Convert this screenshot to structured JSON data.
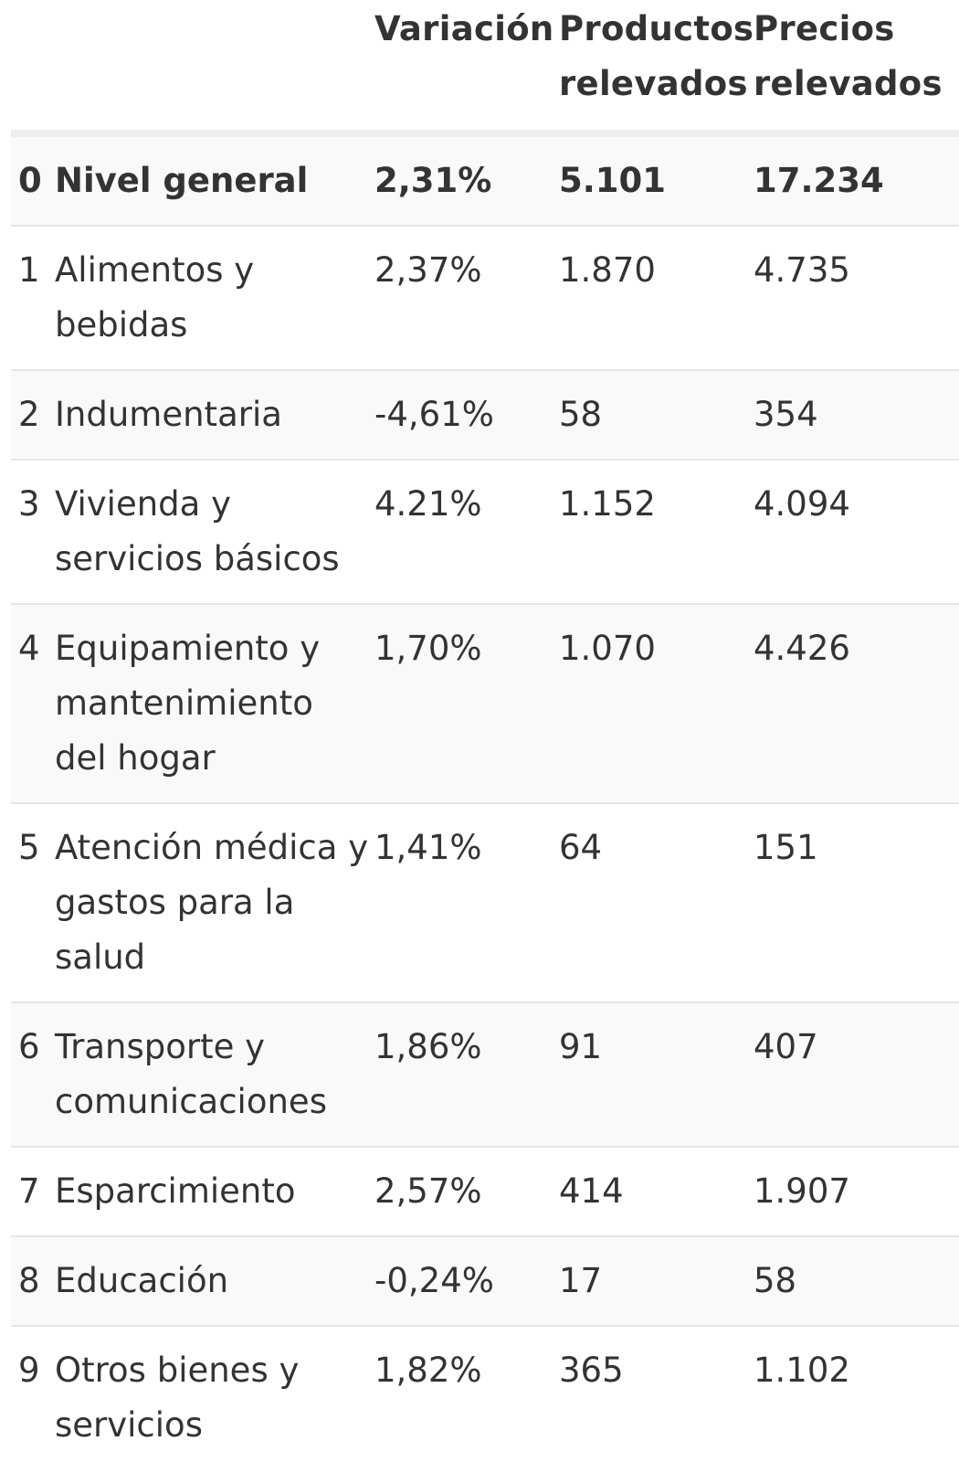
{
  "table": {
    "headers": {
      "number": "",
      "category": "",
      "variation": "Variación",
      "products": "Productos relevados",
      "prices": "Precios relevados"
    },
    "rows": [
      {
        "num": "0",
        "category": "Nivel general",
        "variation": "2,31%",
        "products": "5.101",
        "prices": "17.234"
      },
      {
        "num": "1",
        "category": "Alimentos y bebidas",
        "variation": "2,37%",
        "products": "1.870",
        "prices": "4.735"
      },
      {
        "num": "2",
        "category": "Indumentaria",
        "variation": "-4,61%",
        "products": "58",
        "prices": "354"
      },
      {
        "num": "3",
        "category": "Vivienda y servicios básicos",
        "variation": "4.21%",
        "products": "1.152",
        "prices": "4.094"
      },
      {
        "num": "4",
        "category": "Equipamiento y mantenimiento del hogar",
        "variation": "1,70%",
        "products": "1.070",
        "prices": "4.426"
      },
      {
        "num": "5",
        "category": "Atención médica y gastos para la salud",
        "variation": "1,41%",
        "products": "64",
        "prices": "151"
      },
      {
        "num": "6",
        "category": "Transporte y comunicaciones",
        "variation": "1,86%",
        "products": "91",
        "prices": "407"
      },
      {
        "num": "7",
        "category": "Esparcimiento",
        "variation": "2,57%",
        "products": "414",
        "prices": "1.907"
      },
      {
        "num": "8",
        "category": "Educación",
        "variation": "-0,24%",
        "products": "17",
        "prices": "58"
      },
      {
        "num": "9",
        "category": "Otros bienes y servicios",
        "variation": "1,82%",
        "products": "365",
        "prices": "1.102"
      }
    ]
  }
}
